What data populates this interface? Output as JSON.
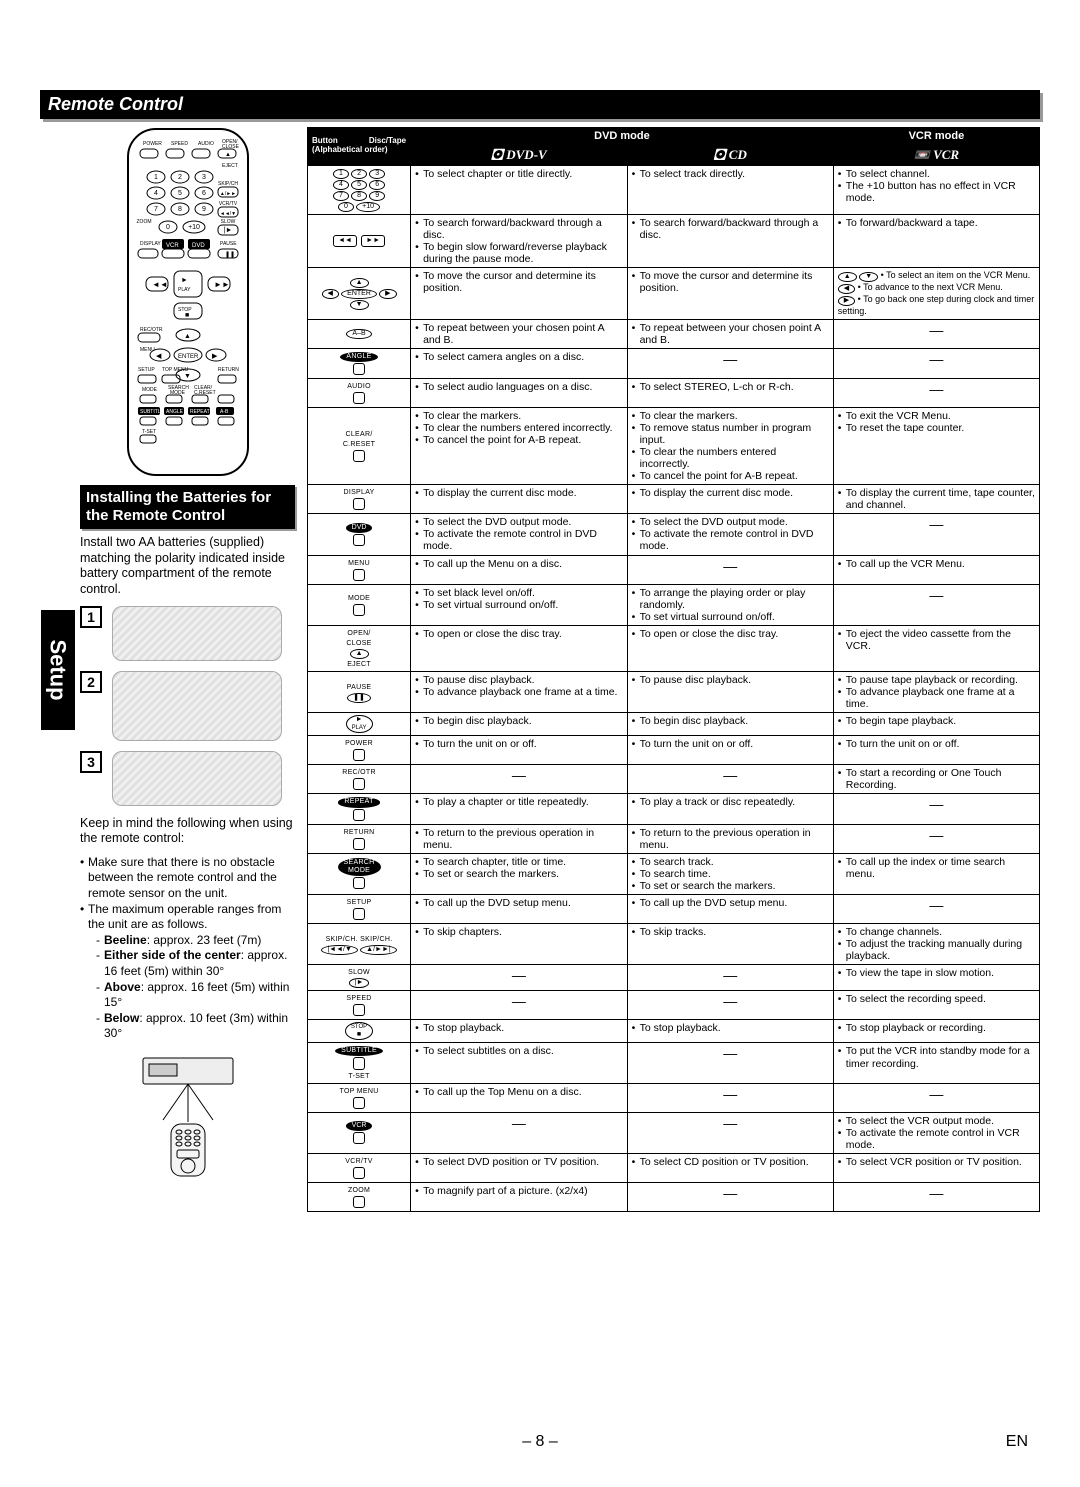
{
  "title": "Remote Control",
  "side_tab": "Setup",
  "sub_heading": "Installing the Batteries for the Remote Control",
  "install_text": "Install two AA batteries (supplied) matching the polarity indicated inside battery compartment of the remote control.",
  "keep_in_mind": "Keep in mind the following when using the remote control:",
  "notes": [
    "Make sure that there is no obstacle between the remote control and the remote sensor on the unit.",
    "The maximum operable ranges from the unit are as follows."
  ],
  "ranges": [
    {
      "label": "Beeline",
      "val": "approx. 23 feet (7m)"
    },
    {
      "label": "Either side of the center",
      "val": "approx. 16 feet (5m) within 30°"
    },
    {
      "label": "Above",
      "val": "approx. 16 feet (5m) within 15°"
    },
    {
      "label": "Below",
      "val": "approx. 10 feet (3m) within 30°"
    }
  ],
  "table_headers": {
    "button": "Button",
    "button_sub": "(Alphabetical order)",
    "disc_tape": "Disc/Tape",
    "dvd_mode": "DVD mode",
    "vcr_mode": "VCR mode",
    "dvd_v": "DVD-V",
    "cd": "CD",
    "vcr": "VCR"
  },
  "rows": [
    {
      "btn_html": "<span class='oval'>1</span> <span class='oval'>2</span> <span class='oval'>3</span><br><span class='oval'>4</span> <span class='oval'>5</span> <span class='oval'>6</span><br><span class='oval'>7</span> <span class='oval'>8</span> <span class='oval'>9</span><br><span class='oval'>0</span> <span class='oval'>+10</span>",
      "dvd": [
        "To select chapter or title directly."
      ],
      "cd": [
        "To select track directly."
      ],
      "vcr": [
        "To select channel.",
        "The +10 button has no effect in VCR mode."
      ]
    },
    {
      "btn_html": "<span class='tiny-btn'>◄◄</span> <span class='tiny-btn'>►►</span>",
      "dvd": [
        "To search forward/backward through a disc.",
        "To begin slow forward/reverse playback during the pause mode."
      ],
      "cd": [
        "To search forward/backward through a disc."
      ],
      "vcr": [
        "To forward/backward a tape."
      ]
    },
    {
      "btn_html": "<span class='oval'>▲</span><br><span class='oval'>◀</span> <span class='oval'>ENTER</span> <span class='oval'>▶</span><br><span class='oval'>▼</span>",
      "dvd": [
        "To move the cursor and determine its position."
      ],
      "cd": [
        "To move the cursor and determine its position."
      ],
      "vcr_html": "<span class='oval'>▲</span> <span class='oval'>▼</span> • To select an item on the VCR Menu.<br><span class='oval'>◀</span> • To advance to the next VCR Menu.<br><span class='oval'>▶</span> • To go back one step during clock and timer setting."
    },
    {
      "btn_html": "<span class='oval'>A–B</span>",
      "dvd": [
        "To repeat between your chosen point A and B."
      ],
      "cd": [
        "To repeat between your chosen point A and B."
      ],
      "vcr_dash": true
    },
    {
      "name": "ANGLE",
      "btn_html": "<span class='btn-label oval oval-black'>ANGLE</span><br><span class='tiny-btn'>&nbsp;</span>",
      "dvd": [
        "To select camera angles on a disc."
      ],
      "cd_dash": true,
      "vcr_dash": true
    },
    {
      "name": "AUDIO",
      "btn_html": "<span class='btn-label'>AUDIO</span><br><span class='tiny-btn'>&nbsp;</span>",
      "dvd": [
        "To select audio languages on a disc."
      ],
      "cd": [
        "To select STEREO, L-ch or R-ch."
      ],
      "vcr_dash": true
    },
    {
      "name": "CLEAR/C.RESET",
      "btn_html": "<span class='btn-label'>CLEAR/<br>C.RESET</span><br><span class='tiny-btn'>&nbsp;</span>",
      "dvd": [
        "To clear the markers.",
        "To clear the numbers entered incorrectly.",
        "To cancel the point for A-B repeat."
      ],
      "cd": [
        "To clear the markers.",
        "To remove status number in program input.",
        "To clear the numbers entered incorrectly.",
        "To cancel the point for A-B repeat."
      ],
      "vcr": [
        "To exit the VCR Menu.",
        "To reset the tape counter."
      ]
    },
    {
      "name": "DISPLAY",
      "btn_html": "<span class='btn-label'>DISPLAY</span><br><span class='tiny-btn'>&nbsp;</span>",
      "dvd": [
        "To display the current disc mode."
      ],
      "cd": [
        "To display the current disc mode."
      ],
      "vcr": [
        "To display the current time, tape counter, and channel."
      ]
    },
    {
      "name": "DVD",
      "btn_html": "<span class='oval oval-black'>DVD</span><br><span class='tiny-btn'>&nbsp;</span>",
      "dvd": [
        "To select the DVD output mode.",
        "To activate the remote control in DVD mode."
      ],
      "cd": [
        "To select the DVD output mode.",
        "To activate the remote control in DVD mode."
      ],
      "vcr_dash": true
    },
    {
      "name": "MENU",
      "btn_html": "<span class='btn-label'>MENU</span><br><span class='tiny-btn'>&nbsp;</span>",
      "dvd": [
        "To call up the Menu on a disc."
      ],
      "cd_dash": true,
      "vcr": [
        "To call up the VCR Menu."
      ]
    },
    {
      "name": "MODE",
      "btn_html": "<span class='btn-label'>MODE</span><br><span class='tiny-btn'>&nbsp;</span>",
      "dvd": [
        "To set black level on/off.",
        "To set virtual surround on/off."
      ],
      "cd": [
        "To arrange the playing order or play randomly.",
        "To set virtual surround on/off."
      ],
      "vcr_dash": true
    },
    {
      "name": "OPEN/CLOSE",
      "btn_html": "<span class='btn-label'>OPEN/<br>CLOSE</span><br><span class='oval'>▲</span><br><span class='btn-label'>EJECT</span>",
      "dvd": [
        "To open or close the disc tray."
      ],
      "cd": [
        "To open or close the disc tray."
      ],
      "vcr": [
        "To eject the video cassette from the VCR."
      ]
    },
    {
      "name": "PAUSE",
      "btn_html": "<span class='btn-label'>PAUSE</span><br><span class='oval'>❚❚</span>",
      "dvd": [
        "To pause disc playback.",
        "To advance playback one frame at a time."
      ],
      "cd": [
        "To pause disc playback."
      ],
      "vcr": [
        "To pause tape playback or recording.",
        "To advance playback one frame at a time."
      ]
    },
    {
      "name": "PLAY",
      "btn_html": "<span class='oval'>►<br><span style='font-size:6px'>PLAY</span></span>",
      "dvd": [
        "To begin disc playback."
      ],
      "cd": [
        "To begin disc playback."
      ],
      "vcr": [
        "To begin tape playback."
      ]
    },
    {
      "name": "POWER",
      "btn_html": "<span class='btn-label'>POWER</span><br><span class='tiny-btn'>&nbsp;</span>",
      "dvd": [
        "To turn the unit on or off."
      ],
      "cd": [
        "To turn the unit on or off."
      ],
      "vcr": [
        "To turn the unit on or off."
      ]
    },
    {
      "name": "REC/OTR",
      "btn_html": "<span class='btn-label'>REC/OTR</span><br><span class='tiny-btn'>&nbsp;</span>",
      "dvd_dash": true,
      "cd_dash": true,
      "vcr": [
        "To start a recording or One Touch Recording."
      ]
    },
    {
      "name": "REPEAT",
      "btn_html": "<span class='oval oval-black btn-label'>REPEAT</span><br><span class='tiny-btn'>&nbsp;</span>",
      "dvd": [
        "To play a chapter or title repeatedly."
      ],
      "cd": [
        "To play a track or disc repeatedly."
      ],
      "vcr_dash": true
    },
    {
      "name": "RETURN",
      "btn_html": "<span class='btn-label'>RETURN</span><br><span class='tiny-btn'>&nbsp;</span>",
      "dvd": [
        "To return to the previous operation in menu."
      ],
      "cd": [
        "To return to the previous operation in menu."
      ],
      "vcr_dash": true
    },
    {
      "name": "SEARCH MODE",
      "btn_html": "<span class='oval oval-black btn-label'>SEARCH<br>MODE</span><br><span class='tiny-btn'>&nbsp;</span>",
      "dvd": [
        "To search chapter, title or time.",
        "To set or search the markers."
      ],
      "cd": [
        "To search track.",
        "To search time.",
        "To set or search the markers."
      ],
      "vcr": [
        "To call up the index or time search menu."
      ]
    },
    {
      "name": "SETUP",
      "btn_html": "<span class='btn-label'>SETUP</span><br><span class='tiny-btn'>&nbsp;</span>",
      "dvd": [
        "To call up the DVD setup menu."
      ],
      "cd": [
        "To call up the DVD setup menu."
      ],
      "vcr_dash": true
    },
    {
      "name": "SKIP/CH.",
      "btn_html": "<span class='btn-label'>SKIP/CH.</span> <span class='btn-label'>SKIP/CH.</span><br><span class='oval'>|◄◄/▼</span> <span class='oval'>▲/►►|</span>",
      "dvd": [
        "To skip chapters."
      ],
      "cd": [
        "To skip tracks."
      ],
      "vcr": [
        "To change channels.",
        "To adjust the tracking manually during playback."
      ]
    },
    {
      "name": "SLOW",
      "btn_html": "<span class='btn-label'>SLOW</span><br><span class='oval'>|►</span>",
      "dvd_dash": true,
      "cd_dash": true,
      "vcr": [
        "To view the tape in slow motion."
      ]
    },
    {
      "name": "SPEED",
      "btn_html": "<span class='btn-label'>SPEED</span><br><span class='tiny-btn'>&nbsp;</span>",
      "dvd_dash": true,
      "cd_dash": true,
      "vcr": [
        "To select the recording speed."
      ]
    },
    {
      "name": "STOP",
      "btn_html": "<span class='oval'><span style='font-size:6px'>STOP</span><br>■</span>",
      "dvd": [
        "To stop playback."
      ],
      "cd": [
        "To stop playback."
      ],
      "vcr": [
        "To stop playback or recording."
      ]
    },
    {
      "name": "SUBTITLE / T-SET",
      "btn_html": "<span class='oval oval-black btn-label'>SUBTITLE</span><br><span class='tiny-btn'>&nbsp;</span><br><span class='btn-label'>T-SET</span>",
      "dvd": [
        "To select subtitles on a disc."
      ],
      "cd_dash": true,
      "vcr": [
        "To put the VCR into standby mode for a timer recording."
      ]
    },
    {
      "name": "TOP MENU",
      "btn_html": "<span class='btn-label'>TOP MENU</span><br><span class='tiny-btn'>&nbsp;</span>",
      "dvd": [
        "To call up the Top Menu on a disc."
      ],
      "cd_dash": true,
      "vcr_dash": true
    },
    {
      "name": "VCR",
      "btn_html": "<span class='oval oval-black'>VCR</span><br><span class='tiny-btn'>&nbsp;</span>",
      "dvd_dash": true,
      "cd_dash": true,
      "vcr": [
        "To select the VCR output mode.",
        "To activate the remote control in VCR mode."
      ]
    },
    {
      "name": "VCR/TV",
      "btn_html": "<span class='btn-label'>VCR/TV</span><br><span class='tiny-btn'>&nbsp;</span>",
      "dvd": [
        "To select DVD position or TV position."
      ],
      "cd": [
        "To select CD position or TV position."
      ],
      "vcr": [
        "To select VCR position or TV position."
      ]
    },
    {
      "name": "ZOOM",
      "btn_html": "<span class='btn-label'>ZOOM</span><br><span class='tiny-btn'>&nbsp;</span>",
      "dvd": [
        "To magnify part of a picture. (x2/x4)"
      ],
      "cd_dash": true,
      "vcr_dash": true
    }
  ],
  "page_number": "– 8 –",
  "lang": "EN"
}
